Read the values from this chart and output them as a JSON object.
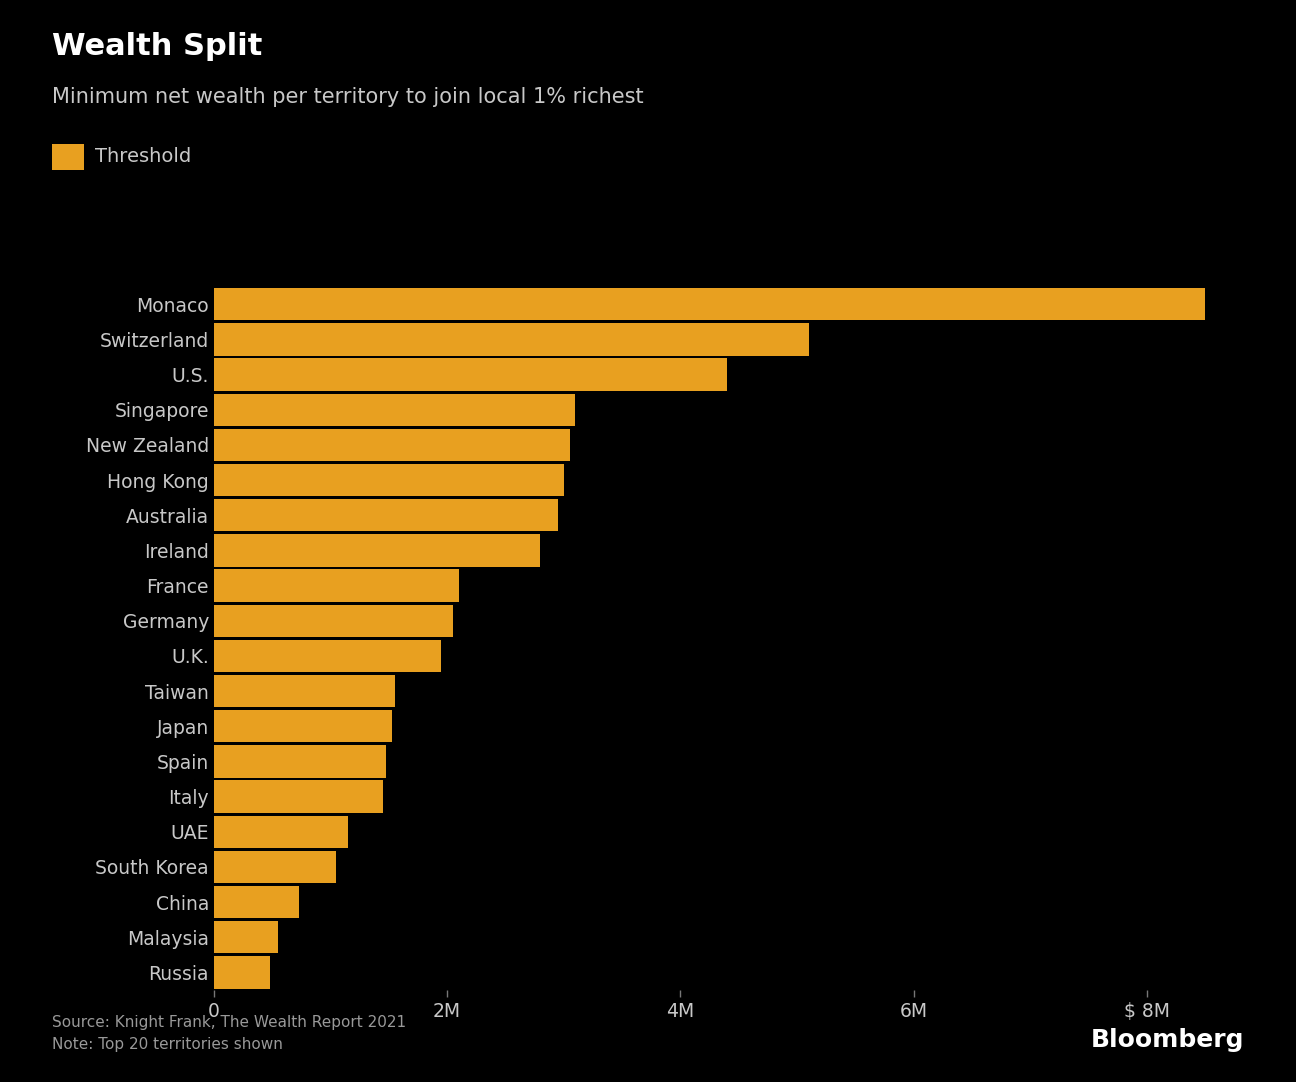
{
  "title": "Wealth Split",
  "subtitle": "Minimum net wealth per territory to join local 1% richest",
  "legend_label": "Threshold",
  "source_line1": "Source: Knight Frank, The Wealth Report 2021",
  "source_line2": "Note: Top 20 territories shown",
  "bloomberg_label": "Bloomberg",
  "bar_color": "#E8A020",
  "background_color": "#000000",
  "text_color": "#c8c8c8",
  "title_color": "#ffffff",
  "countries": [
    "Monaco",
    "Switzerland",
    "U.S.",
    "Singapore",
    "New Zealand",
    "Hong Kong",
    "Australia",
    "Ireland",
    "France",
    "Germany",
    "U.K.",
    "Taiwan",
    "Japan",
    "Spain",
    "Italy",
    "UAE",
    "South Korea",
    "China",
    "Malaysia",
    "Russia"
  ],
  "values": [
    8500000,
    5100000,
    4400000,
    3100000,
    3050000,
    3000000,
    2950000,
    2800000,
    2100000,
    2050000,
    1950000,
    1550000,
    1530000,
    1480000,
    1450000,
    1150000,
    1050000,
    730000,
    550000,
    480000
  ],
  "xlim": [
    0,
    9000000
  ],
  "xtick_positions": [
    0,
    2000000,
    4000000,
    6000000,
    8000000
  ],
  "xtick_labels": [
    "0",
    "2M",
    "4M",
    "6M",
    "$ 8M"
  ]
}
